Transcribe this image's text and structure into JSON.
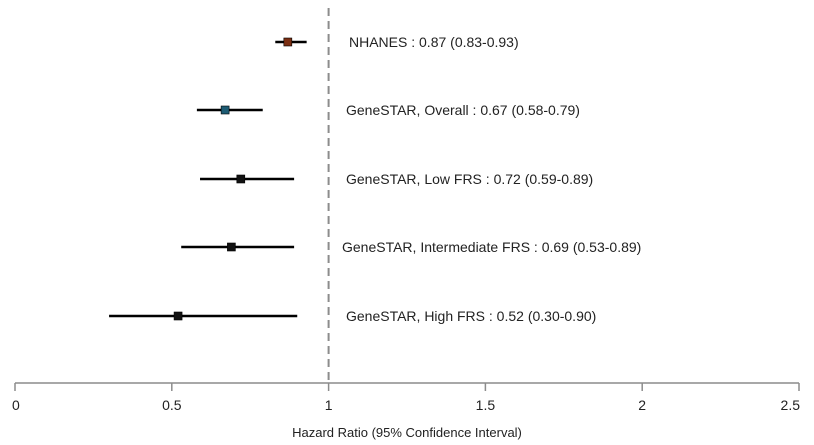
{
  "chart_data": {
    "type": "scatter",
    "subtype": "forest-plot",
    "title": "",
    "xlabel": "Hazard Ratio (95% Confidence Interval)",
    "ylabel": "",
    "xlim": [
      0,
      2.5
    ],
    "x_ticks": [
      0,
      0.5,
      1,
      1.5,
      2,
      2.5
    ],
    "x_tick_labels": [
      "0",
      "0.5",
      "1",
      "1.5",
      "2",
      "2.5"
    ],
    "reference_line": 1,
    "grid": false,
    "legend": "none",
    "rows": [
      {
        "label": "NHANES : 0.87 (0.83-0.93)",
        "estimate": 0.87,
        "lower": 0.83,
        "upper": 0.93,
        "marker_color": "#7a2e12"
      },
      {
        "label": "GeneSTAR, Overall : 0.67 (0.58-0.79)",
        "estimate": 0.67,
        "lower": 0.58,
        "upper": 0.79,
        "marker_color": "#1d5b73"
      },
      {
        "label": "GeneSTAR, Low FRS : 0.72 (0.59-0.89)",
        "estimate": 0.72,
        "lower": 0.59,
        "upper": 0.89,
        "marker_color": "#111111"
      },
      {
        "label": "GeneSTAR, Intermediate FRS : 0.69 (0.53-0.89)",
        "estimate": 0.69,
        "lower": 0.53,
        "upper": 0.89,
        "marker_color": "#111111"
      },
      {
        "label": "GeneSTAR, High FRS : 0.52 (0.30-0.90)",
        "estimate": 0.52,
        "lower": 0.3,
        "upper": 0.9,
        "marker_color": "#111111"
      }
    ],
    "colors": {
      "line": "#000000",
      "axis": "#8c8c8c",
      "reference": "#8c8c8c"
    }
  }
}
